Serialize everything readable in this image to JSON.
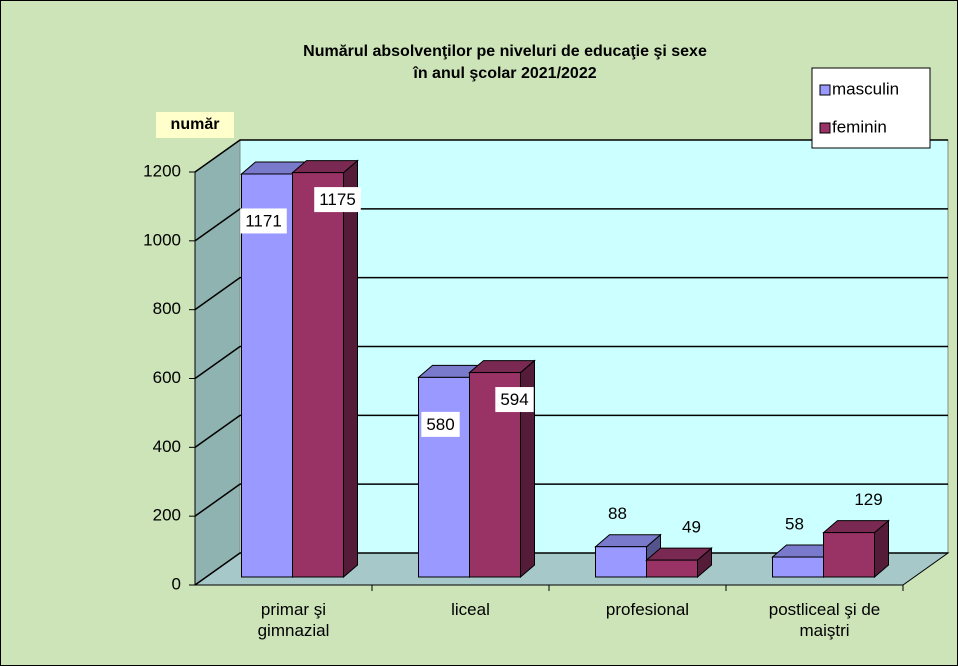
{
  "chart_data": {
    "type": "bar3d",
    "title": [
      "Numărul absolvenţilor  pe niveluri de educaţie şi sexe",
      "în anul şcolar 2021/2022"
    ],
    "y_label": "număr",
    "categories": [
      "primar şi gimnazial",
      "liceal",
      "profesional",
      "postliceal şi de maiştri"
    ],
    "series": [
      {
        "name": "masculin",
        "color": "#9999ff",
        "values": [
          1171,
          580,
          88,
          58
        ]
      },
      {
        "name": "feminin",
        "color": "#993366",
        "values": [
          1175,
          594,
          49,
          129
        ]
      }
    ],
    "ylim": [
      0,
      1200
    ],
    "yticks": [
      0,
      200,
      400,
      600,
      800,
      1000,
      1200
    ],
    "grid": true,
    "legend": "top-right"
  }
}
